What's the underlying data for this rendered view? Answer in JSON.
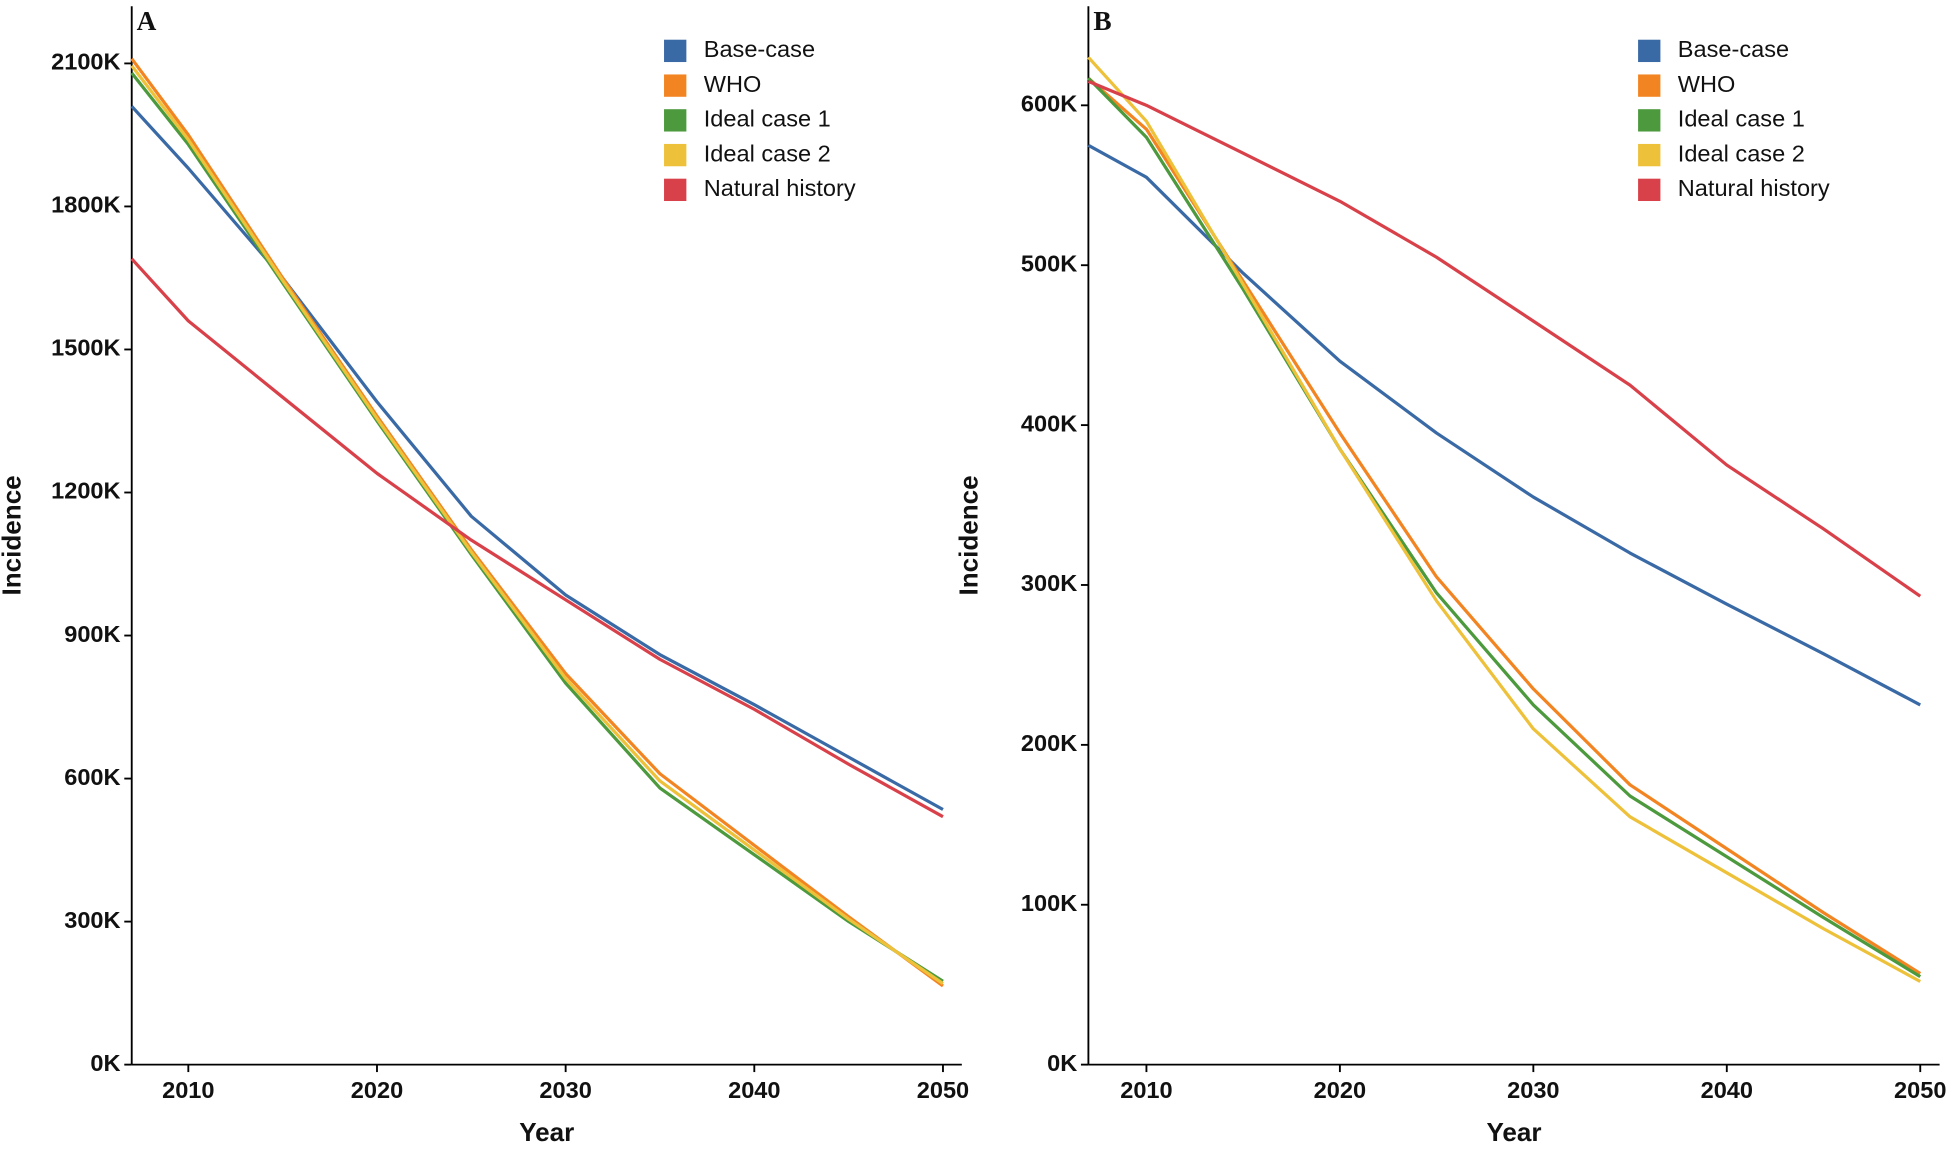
{
  "chart_data": [
    {
      "type": "line",
      "label": "A",
      "x_label": "Year",
      "y_label": "Incidence",
      "x": [
        2007,
        2010,
        2015,
        2020,
        2025,
        2030,
        2035,
        2040,
        2045,
        2050
      ],
      "xlim": [
        2007,
        2051
      ],
      "xticks": [
        2010,
        2020,
        2030,
        2040,
        2050
      ],
      "ylim": [
        0,
        2220000
      ],
      "yticks": [
        {
          "value": 0,
          "label": "0K"
        },
        {
          "value": 300000,
          "label": "300K"
        },
        {
          "value": 600000,
          "label": "600K"
        },
        {
          "value": 900000,
          "label": "900K"
        },
        {
          "value": 1200000,
          "label": "1200K"
        },
        {
          "value": 1500000,
          "label": "1500K"
        },
        {
          "value": 1800000,
          "label": "1800K"
        },
        {
          "value": 2100000,
          "label": "2100K"
        }
      ],
      "legend": "upper right",
      "series": [
        {
          "name": "Base-case",
          "color": "#3a6aa6",
          "values": [
            2010000,
            1880000,
            1650000,
            1390000,
            1150000,
            985000,
            860000,
            755000,
            645000,
            535000
          ]
        },
        {
          "name": "WHO",
          "color": "#f28522",
          "values": [
            2110000,
            1950000,
            1650000,
            1360000,
            1080000,
            820000,
            610000,
            460000,
            310000,
            165000
          ]
        },
        {
          "name": "Ideal case 1",
          "color": "#4c9a3d",
          "values": [
            2080000,
            1930000,
            1640000,
            1350000,
            1070000,
            800000,
            580000,
            440000,
            300000,
            175000
          ]
        },
        {
          "name": "Ideal case 2",
          "color": "#eec13a",
          "values": [
            2095000,
            1940000,
            1645000,
            1355000,
            1075000,
            810000,
            595000,
            450000,
            305000,
            170000
          ]
        },
        {
          "name": "Natural history",
          "color": "#d9414a",
          "values": [
            1690000,
            1560000,
            1400000,
            1240000,
            1100000,
            975000,
            850000,
            745000,
            630000,
            520000
          ]
        }
      ]
    },
    {
      "type": "line",
      "label": "B",
      "x_label": "Year",
      "y_label": "Incidence",
      "x": [
        2007,
        2010,
        2015,
        2020,
        2025,
        2030,
        2035,
        2040,
        2045,
        2050
      ],
      "xlim": [
        2007,
        2051
      ],
      "xticks": [
        2010,
        2020,
        2030,
        2040,
        2050
      ],
      "ylim": [
        0,
        662000
      ],
      "yticks": [
        {
          "value": 0,
          "label": "0K"
        },
        {
          "value": 100000,
          "label": "100K"
        },
        {
          "value": 200000,
          "label": "200K"
        },
        {
          "value": 300000,
          "label": "300K"
        },
        {
          "value": 400000,
          "label": "400K"
        },
        {
          "value": 500000,
          "label": "500K"
        },
        {
          "value": 600000,
          "label": "600K"
        }
      ],
      "legend": "upper right",
      "series": [
        {
          "name": "Base-case",
          "color": "#3a6aa6",
          "values": [
            575000,
            555000,
            495000,
            440000,
            395000,
            355000,
            320000,
            288000,
            257000,
            225000
          ]
        },
        {
          "name": "WHO",
          "color": "#f28522",
          "values": [
            617000,
            585000,
            490000,
            395000,
            305000,
            235000,
            175000,
            135000,
            95000,
            57000
          ]
        },
        {
          "name": "Ideal case 1",
          "color": "#4c9a3d",
          "values": [
            617000,
            580000,
            485000,
            385000,
            295000,
            225000,
            168000,
            130000,
            92000,
            55000
          ]
        },
        {
          "name": "Ideal case 2",
          "color": "#eec13a",
          "values": [
            630000,
            590000,
            488000,
            385000,
            290000,
            210000,
            155000,
            120000,
            85000,
            52000
          ]
        },
        {
          "name": "Natural history",
          "color": "#d9414a",
          "values": [
            615000,
            600000,
            570000,
            540000,
            505000,
            465000,
            425000,
            375000,
            335000,
            293000
          ]
        }
      ]
    }
  ]
}
